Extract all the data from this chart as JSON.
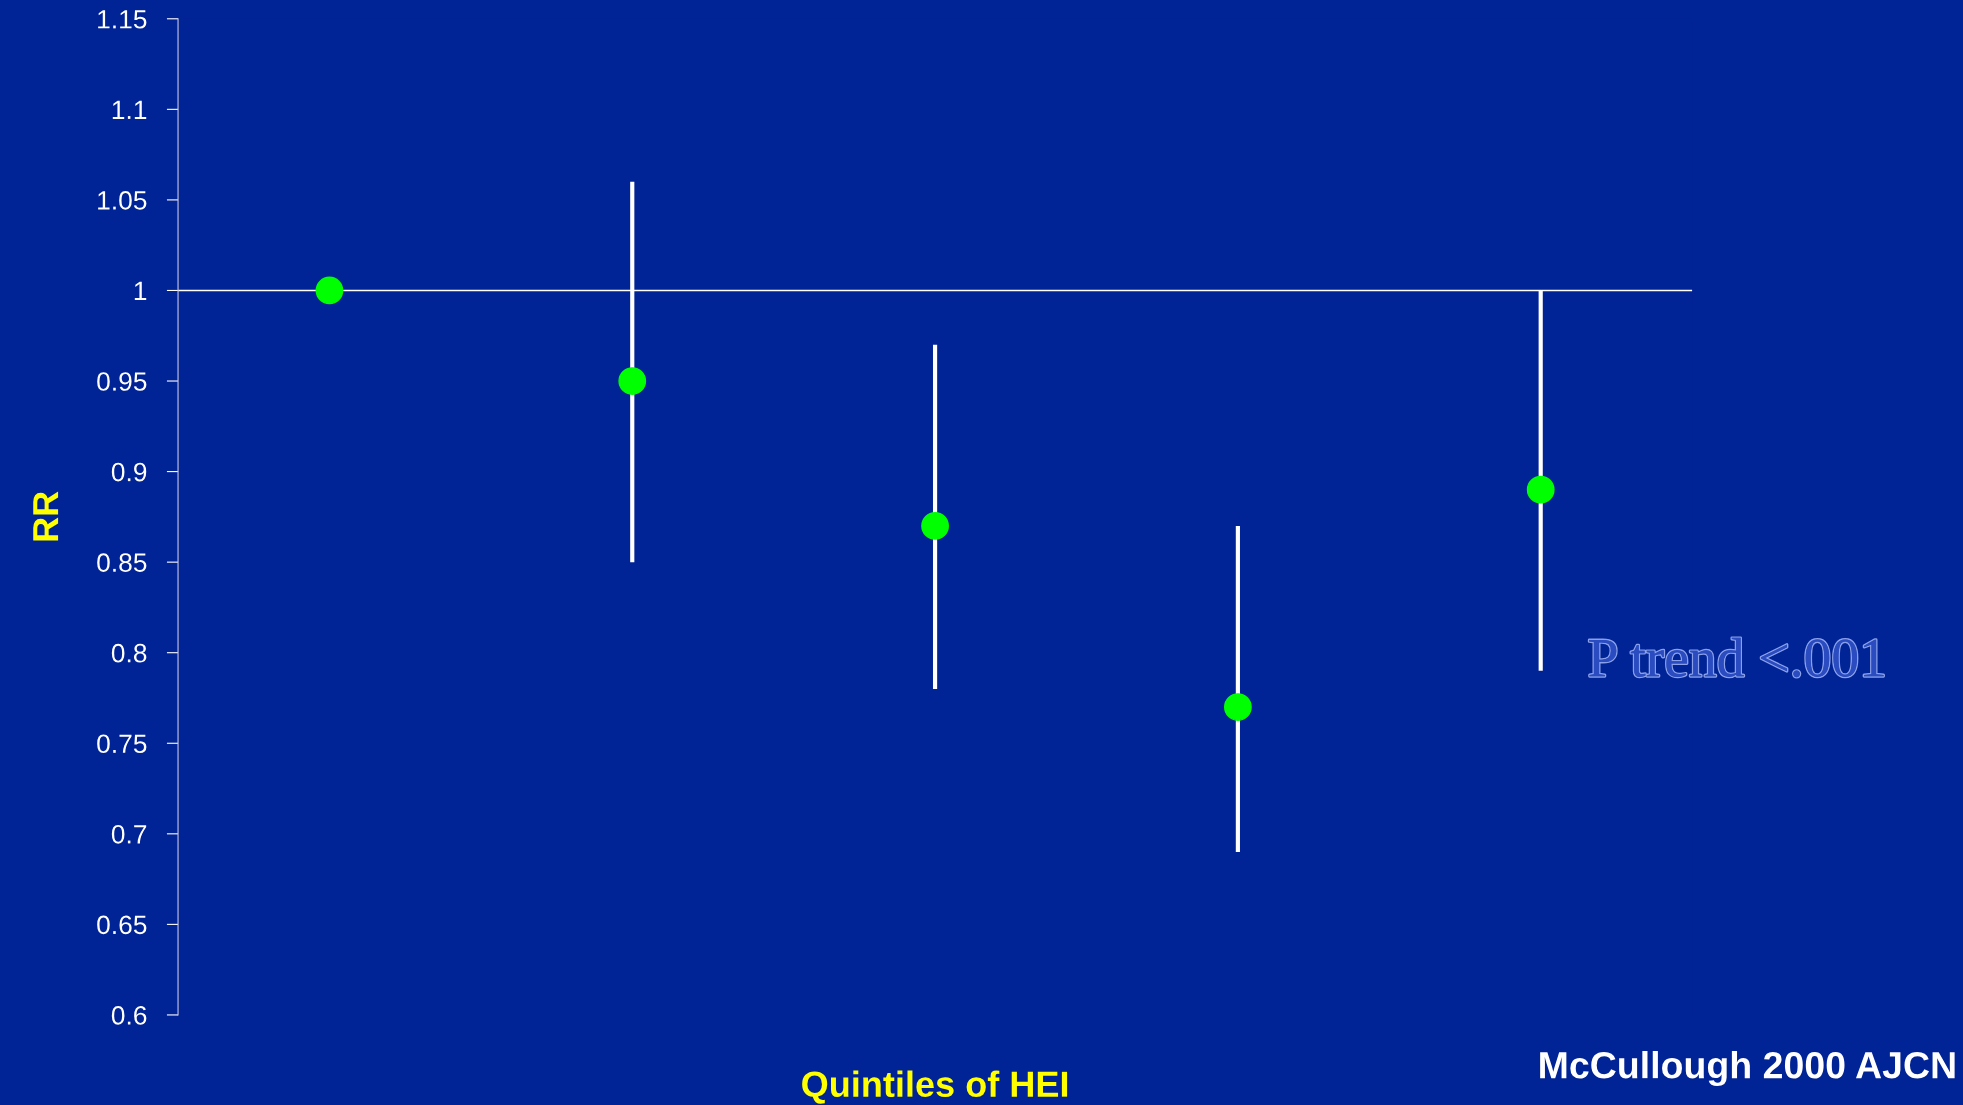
{
  "chart_data": {
    "type": "scatter",
    "xlabel": "Quintiles of HEI",
    "ylabel": "RR",
    "categories": [
      null,
      null,
      null,
      null,
      null
    ],
    "series": [
      {
        "color": "#00ff00",
        "values": [
          1,
          0.95,
          0.87,
          0.77,
          0.89
        ],
        "errors": [
          null,
          [
            0.85,
            1.06
          ],
          [
            0.78,
            0.97
          ],
          [
            0.69,
            0.87
          ],
          [
            0.79,
            1
          ]
        ]
      }
    ],
    "ylim": [
      0.6,
      1.15
    ],
    "yticks": [
      0.6,
      0.65,
      0.7,
      0.75,
      0.8,
      0.85,
      0.9,
      0.95,
      1,
      1.05,
      1.1,
      1.15
    ],
    "tick_labels": "y",
    "marker": "circle",
    "grid": false,
    "legend": false,
    "ref_lines": [
      {
        "axis": "y",
        "value": 1,
        "color": "#ffffff"
      }
    ],
    "annotations": [
      "P trend <.001",
      "McCullough 2000 AJCN"
    ]
  }
}
